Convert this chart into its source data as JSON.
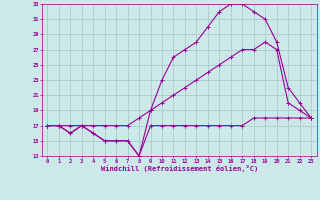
{
  "xlabel": "Windchill (Refroidissement éolien,°C)",
  "bg_color": "#cce8e8",
  "line_color": "#990099",
  "grid_color": "#aacccc",
  "xlim": [
    -0.5,
    23.5
  ],
  "ylim": [
    13,
    33
  ],
  "xticks": [
    0,
    1,
    2,
    3,
    4,
    5,
    6,
    7,
    8,
    9,
    10,
    11,
    12,
    13,
    14,
    15,
    16,
    17,
    18,
    19,
    20,
    21,
    22,
    23
  ],
  "yticks": [
    13,
    15,
    17,
    19,
    21,
    23,
    25,
    27,
    29,
    31,
    33
  ],
  "line1_x": [
    0,
    1,
    2,
    3,
    4,
    5,
    6,
    7,
    8,
    9,
    10,
    11,
    12,
    13,
    14,
    15,
    16,
    17,
    18,
    19,
    20,
    21,
    22,
    23
  ],
  "line1_y": [
    17,
    17,
    16,
    17,
    16,
    15,
    15,
    15,
    13,
    17,
    17,
    17,
    17,
    17,
    17,
    17,
    17,
    17,
    18,
    18,
    18,
    18,
    18,
    18
  ],
  "line2_x": [
    0,
    1,
    2,
    3,
    4,
    5,
    6,
    7,
    8,
    9,
    10,
    11,
    12,
    13,
    14,
    15,
    16,
    17,
    18,
    19,
    20,
    21,
    22,
    23
  ],
  "line2_y": [
    17,
    17,
    17,
    17,
    17,
    17,
    17,
    17,
    18,
    19,
    20,
    21,
    22,
    23,
    24,
    25,
    26,
    27,
    27,
    28,
    27,
    20,
    19,
    18
  ],
  "line3_x": [
    0,
    1,
    2,
    3,
    4,
    5,
    6,
    7,
    8,
    9,
    10,
    11,
    12,
    13,
    14,
    15,
    16,
    17,
    18,
    19,
    20,
    21,
    22,
    23
  ],
  "line3_y": [
    17,
    17,
    16,
    17,
    16,
    15,
    15,
    15,
    13,
    19,
    23,
    26,
    27,
    28,
    30,
    32,
    33,
    33,
    32,
    31,
    28,
    22,
    20,
    18
  ]
}
